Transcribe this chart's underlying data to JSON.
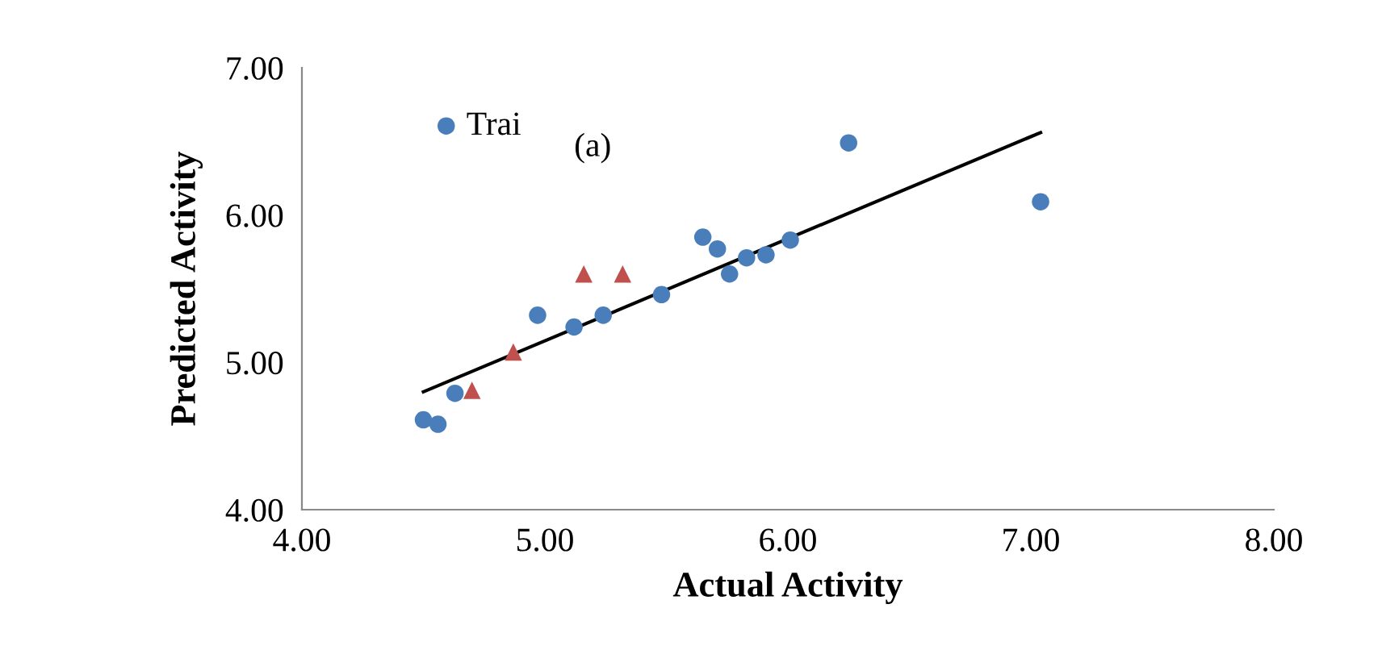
{
  "chart_data": {
    "type": "scatter",
    "xlabel": "Actual Activity",
    "ylabel": "Predicted Activity",
    "annotations": [
      "(a)"
    ],
    "xlim": [
      4,
      8
    ],
    "xticks": [
      {
        "value": 4,
        "label": "4.00"
      },
      {
        "value": 5,
        "label": "5.00"
      },
      {
        "value": 6,
        "label": "6.00"
      },
      {
        "value": 7,
        "label": "7.00"
      },
      {
        "value": 8,
        "label": "8.00"
      }
    ],
    "ylim": [
      4,
      7
    ],
    "yticks": [
      {
        "value": 4,
        "label": "4.00"
      },
      {
        "value": 5,
        "label": "5.00"
      },
      {
        "value": 6,
        "label": "6.00"
      },
      {
        "value": 7,
        "label": "7.00"
      }
    ],
    "grid": false,
    "legend": "top left",
    "series": [
      {
        "name": "Trai",
        "color": "#4a7ebb",
        "marker": "circle",
        "x": [
          4.5,
          4.56,
          4.63,
          4.97,
          5.12,
          5.24,
          5.48,
          5.65,
          5.71,
          5.76,
          5.83,
          5.91,
          6.01,
          6.25,
          7.04
        ],
        "values": [
          4.61,
          4.58,
          4.79,
          5.32,
          5.24,
          5.32,
          5.46,
          5.85,
          5.77,
          5.6,
          5.71,
          5.73,
          5.83,
          6.49,
          6.09
        ]
      },
      {
        "color": "#c0504d",
        "marker": "triangle",
        "x": [
          4.7,
          4.87,
          5.16,
          5.32
        ],
        "values": [
          4.81,
          5.07,
          5.6,
          5.6
        ]
      },
      {
        "type": "line",
        "color": "#000000",
        "marker": "none",
        "line_style": "solid",
        "x": [
          4.5,
          7.04
        ],
        "values": [
          4.8,
          6.56
        ]
      }
    ]
  }
}
